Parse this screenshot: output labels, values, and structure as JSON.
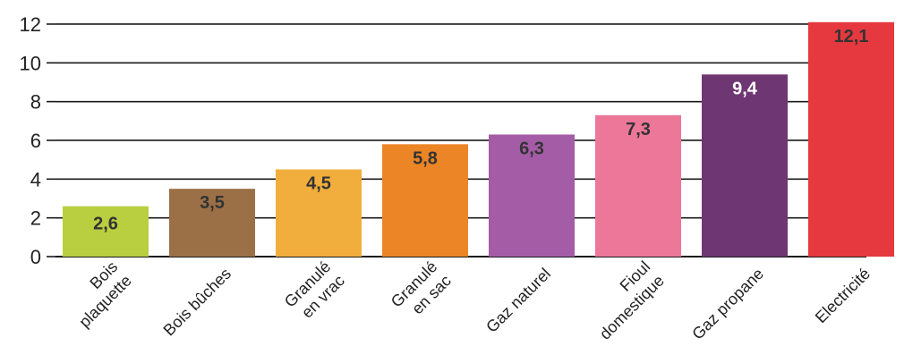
{
  "chart_data": {
    "type": "bar",
    "title": "",
    "xlabel": "",
    "ylabel": "",
    "categories": [
      "Bois\nplaquette",
      "Bois bûches",
      "Granulé\nen vrac",
      "Granulé\nen sac",
      "Gaz naturel",
      "Fioul\ndomestique",
      "Gaz propane",
      "Electricité"
    ],
    "values": [
      2.6,
      3.5,
      4.5,
      5.8,
      6.3,
      7.3,
      9.4,
      12.1
    ],
    "value_labels": [
      "2,6",
      "3,5",
      "4,5",
      "5,8",
      "6,3",
      "7,3",
      "9,4",
      "12,1"
    ],
    "colors": [
      "#b9cf3f",
      "#9b7047",
      "#f1ae3c",
      "#ec8526",
      "#a45ca6",
      "#ec7799",
      "#6e3672",
      "#e5393f"
    ],
    "value_label_colors": [
      "#333333",
      "#333333",
      "#333333",
      "#333333",
      "#333333",
      "#333333",
      "#ffffff",
      "#333333"
    ],
    "ylim": [
      0,
      12.5
    ],
    "yticks": [
      0,
      2,
      4,
      6,
      8,
      10,
      12
    ],
    "grid": true,
    "legend": "none"
  }
}
